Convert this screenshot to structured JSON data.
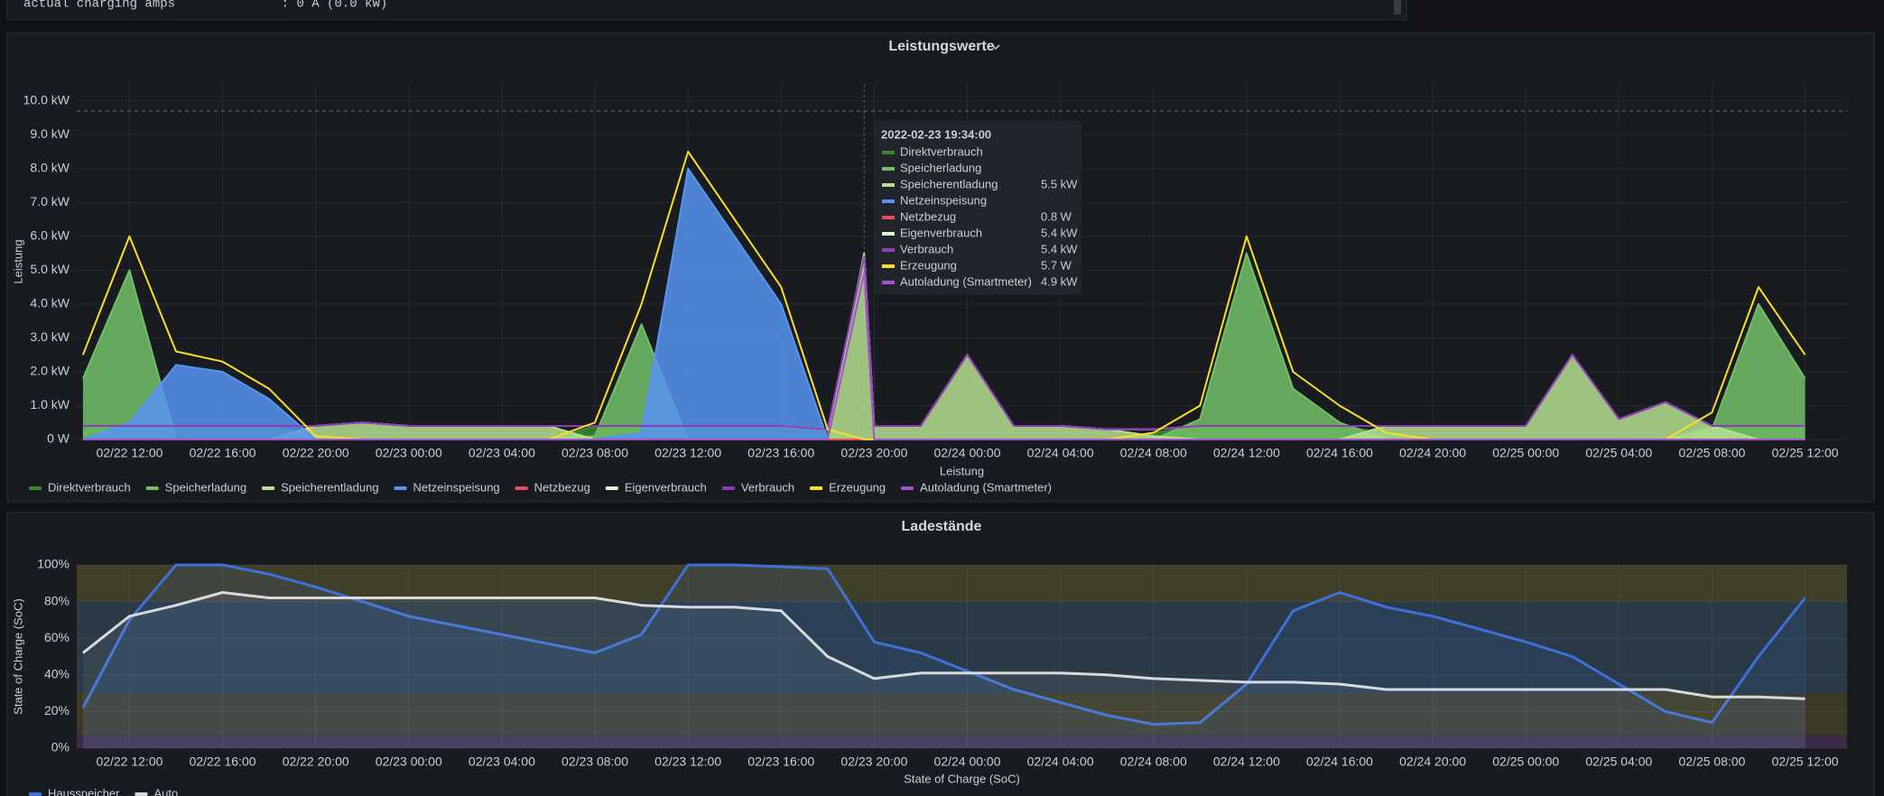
{
  "header": {
    "text": "actual charging amps              : 0 A (0.0 kW)"
  },
  "chart_data": [
    {
      "type": "area",
      "title": "Leistungswerte",
      "ylabel": "Leistung",
      "xlabel": "Leistung",
      "xlim": [
        "02/22 09:44",
        "02/25 13:48"
      ],
      "xticks": [
        "02/22 12:00",
        "02/22 16:00",
        "02/22 20:00",
        "02/23 00:00",
        "02/23 04:00",
        "02/23 08:00",
        "02/23 12:00",
        "02/23 16:00",
        "02/23 20:00",
        "02/24 00:00",
        "02/24 04:00",
        "02/24 08:00",
        "02/24 12:00",
        "02/24 16:00",
        "02/24 20:00",
        "02/25 00:00",
        "02/25 04:00",
        "02/25 08:00",
        "02/25 12:00"
      ],
      "ylim": [
        0,
        10.5
      ],
      "yticks": [
        {
          "value": 0,
          "label": "0 W"
        },
        {
          "value": 1,
          "label": "1.0 kW"
        },
        {
          "value": 2,
          "label": "2.0 kW"
        },
        {
          "value": 3,
          "label": "3.0 kW"
        },
        {
          "value": 4,
          "label": "4.0 kW"
        },
        {
          "value": 5,
          "label": "5.0 kW"
        },
        {
          "value": 6,
          "label": "6.0 kW"
        },
        {
          "value": 7,
          "label": "7.0 kW"
        },
        {
          "value": 8,
          "label": "8.0 kW"
        },
        {
          "value": 9,
          "label": "9.0 kW"
        },
        {
          "value": 10,
          "label": "10.0 kW"
        }
      ],
      "grid": true,
      "threshold": 9.7,
      "x": [
        "02/22 10:00",
        "02/22 12:00",
        "02/22 14:00",
        "02/22 16:00",
        "02/22 18:00",
        "02/22 20:00",
        "02/22 22:00",
        "02/23 00:00",
        "02/23 02:00",
        "02/23 04:00",
        "02/23 06:00",
        "02/23 08:00",
        "02/23 10:00",
        "02/23 12:00",
        "02/23 14:00",
        "02/23 16:00",
        "02/23 18:00",
        "02/23 19:34",
        "02/23 20:00",
        "02/23 22:00",
        "02/24 00:00",
        "02/24 02:00",
        "02/24 04:00",
        "02/24 06:00",
        "02/24 08:00",
        "02/24 10:00",
        "02/24 12:00",
        "02/24 14:00",
        "02/24 16:00",
        "02/24 18:00",
        "02/24 20:00",
        "02/24 22:00",
        "02/25 00:00",
        "02/25 02:00",
        "02/25 04:00",
        "02/25 06:00",
        "02/25 08:00",
        "02/25 10:00",
        "02/25 12:00"
      ],
      "series": [
        {
          "name": "Direktverbrauch",
          "color": "#37872d",
          "fill_opacity": 0.9,
          "values": [
            0.4,
            0.4,
            0.4,
            0.4,
            0.4,
            0.1,
            0,
            0,
            0,
            0,
            0,
            0.4,
            0.4,
            0.4,
            0.4,
            0.4,
            0.3,
            0,
            0,
            0,
            0,
            0,
            0,
            0,
            0.2,
            0.4,
            0.4,
            0.4,
            0.4,
            0.2,
            0,
            0,
            0,
            0,
            0,
            0,
            0.4,
            0.4,
            0.4
          ]
        },
        {
          "name": "Speicherladung",
          "color": "#73bf69",
          "fill_opacity": 0.85,
          "values": [
            1.8,
            5.0,
            0,
            0,
            0,
            0,
            0,
            0,
            0,
            0,
            0,
            0.1,
            3.4,
            0,
            0,
            0,
            0,
            0,
            0,
            0,
            0,
            0,
            0,
            0,
            0,
            0.6,
            5.5,
            1.5,
            0.5,
            0,
            0,
            0,
            0,
            0,
            0,
            0,
            0.3,
            4.0,
            1.8
          ]
        },
        {
          "name": "Speicherentladung",
          "color": "#b5e08f",
          "fill_opacity": 0.85,
          "values": [
            0,
            0,
            0,
            0,
            0,
            0.4,
            0.5,
            0.4,
            0.4,
            0.4,
            0.4,
            0,
            0,
            0,
            0,
            0,
            0,
            5.5,
            0.4,
            0.4,
            2.5,
            0.4,
            0.4,
            0.3,
            0.1,
            0,
            0,
            0,
            0,
            0.4,
            0.4,
            0.4,
            0.4,
            2.5,
            0.6,
            1.1,
            0.4,
            0,
            0
          ]
        },
        {
          "name": "Netzeinspeisung",
          "color": "#5794f2",
          "fill_opacity": 0.85,
          "values": [
            0,
            0.5,
            2.2,
            2.0,
            1.2,
            0,
            0,
            0,
            0,
            0,
            0,
            0,
            0.2,
            8.0,
            6.0,
            4.0,
            0,
            0,
            0,
            0,
            0,
            0,
            0,
            0,
            0,
            0,
            0,
            0,
            0,
            0,
            0,
            0,
            0,
            0,
            0,
            0,
            0,
            0,
            0
          ]
        },
        {
          "name": "Netzbezug",
          "color": "#f2495c",
          "fill_opacity": 0,
          "values": [
            0,
            0,
            0,
            0,
            0,
            0,
            0,
            0,
            0,
            0,
            0,
            0,
            0,
            0,
            0,
            0,
            0,
            0.0008,
            0,
            0,
            0,
            0,
            0,
            0,
            0,
            0,
            0,
            0,
            0,
            0,
            0,
            0,
            0,
            0,
            0,
            0,
            0,
            0,
            0
          ]
        },
        {
          "name": "Eigenverbrauch",
          "color": "#e0f9d7",
          "fill_opacity": 0,
          "values": [
            0.4,
            0.4,
            0.4,
            0.4,
            0.4,
            0.4,
            0.5,
            0.4,
            0.4,
            0.4,
            0.4,
            0.4,
            0.4,
            0.4,
            0.4,
            0.4,
            0.3,
            5.4,
            0.4,
            0.4,
            2.5,
            0.4,
            0.4,
            0.3,
            0.3,
            0.4,
            0.4,
            0.4,
            0.4,
            0.4,
            0.4,
            0.4,
            0.4,
            2.5,
            0.6,
            1.1,
            0.4,
            0.4,
            0.4
          ]
        },
        {
          "name": "Verbrauch",
          "color": "#8f3bb8",
          "fill_opacity": 0,
          "values": [
            0.4,
            0.4,
            0.4,
            0.4,
            0.4,
            0.4,
            0.5,
            0.4,
            0.4,
            0.4,
            0.4,
            0.4,
            0.4,
            0.4,
            0.4,
            0.4,
            0.3,
            5.4,
            0.4,
            0.4,
            2.5,
            0.4,
            0.4,
            0.3,
            0.3,
            0.4,
            0.4,
            0.4,
            0.4,
            0.4,
            0.4,
            0.4,
            0.4,
            2.5,
            0.6,
            1.1,
            0.4,
            0.4,
            0.4
          ]
        },
        {
          "name": "Erzeugung",
          "color": "#fade2a",
          "fill_opacity": 0,
          "values": [
            2.5,
            6.0,
            2.6,
            2.3,
            1.5,
            0.1,
            0,
            0,
            0,
            0,
            0,
            0.5,
            4.0,
            8.5,
            6.5,
            4.5,
            0.3,
            0.0057,
            0,
            0,
            0,
            0,
            0,
            0,
            0.2,
            1.0,
            6.0,
            2.0,
            1.0,
            0.2,
            0,
            0,
            0,
            0,
            0,
            0,
            0.8,
            4.5,
            2.5
          ]
        },
        {
          "name": "Autoladung (Smartmeter)",
          "color": "#a352cc",
          "fill_opacity": 0,
          "values": [
            0,
            0,
            0,
            0,
            0,
            0,
            0,
            0,
            0,
            0,
            0,
            0,
            0,
            0,
            0,
            0,
            0,
            4.9,
            0,
            0,
            0,
            0,
            0,
            0,
            0,
            0,
            0,
            0,
            0,
            0,
            0,
            0,
            0,
            0,
            0,
            0,
            0,
            0,
            0
          ]
        }
      ],
      "tooltip": {
        "time": "2022-02-23 19:34:00",
        "labels": [
          null,
          null,
          "5.5 kW",
          null,
          "0.8 W",
          "5.4 kW",
          "5.4 kW",
          "5.7 W",
          "4.9 kW"
        ]
      }
    },
    {
      "type": "line",
      "title": "Ladestände",
      "ylabel": "State of Charge (SoC)",
      "xlabel": "State of Charge (SoC)",
      "xlim": [
        "02/22 09:44",
        "02/25 13:48"
      ],
      "xticks": [
        "02/22 12:00",
        "02/22 16:00",
        "02/22 20:00",
        "02/23 00:00",
        "02/23 04:00",
        "02/23 08:00",
        "02/23 12:00",
        "02/23 16:00",
        "02/23 20:00",
        "02/24 00:00",
        "02/24 04:00",
        "02/24 08:00",
        "02/24 12:00",
        "02/24 16:00",
        "02/24 20:00",
        "02/25 00:00",
        "02/25 04:00",
        "02/25 08:00",
        "02/25 12:00"
      ],
      "ylim": [
        0,
        100
      ],
      "yticks": [
        {
          "value": 0,
          "label": "0%"
        },
        {
          "value": 20,
          "label": "20%"
        },
        {
          "value": 40,
          "label": "40%"
        },
        {
          "value": 60,
          "label": "60%"
        },
        {
          "value": 80,
          "label": "80%"
        },
        {
          "value": 100,
          "label": "100%"
        }
      ],
      "grid": true,
      "bands": [
        {
          "from": 0,
          "to": 7,
          "color": "#3b2b48"
        },
        {
          "from": 7,
          "to": 30,
          "color": "#3a3a26"
        },
        {
          "from": 30,
          "to": 80,
          "color": "#2a3946"
        },
        {
          "from": 80,
          "to": 100,
          "color": "#413f28"
        }
      ],
      "x": [
        "02/22 10:00",
        "02/22 12:00",
        "02/22 14:00",
        "02/22 16:00",
        "02/22 18:00",
        "02/22 20:00",
        "02/22 22:00",
        "02/23 00:00",
        "02/23 02:00",
        "02/23 04:00",
        "02/23 06:00",
        "02/23 08:00",
        "02/23 10:00",
        "02/23 12:00",
        "02/23 14:00",
        "02/23 16:00",
        "02/23 18:00",
        "02/23 20:00",
        "02/23 22:00",
        "02/24 00:00",
        "02/24 02:00",
        "02/24 04:00",
        "02/24 06:00",
        "02/24 08:00",
        "02/24 10:00",
        "02/24 12:00",
        "02/24 14:00",
        "02/24 16:00",
        "02/24 18:00",
        "02/24 20:00",
        "02/24 22:00",
        "02/25 00:00",
        "02/25 02:00",
        "02/25 04:00",
        "02/25 06:00",
        "02/25 08:00",
        "02/25 10:00",
        "02/25 12:00"
      ],
      "series": [
        {
          "name": "Hausspeicher",
          "color": "#3d71d9",
          "fill_opacity": 0.12,
          "values": [
            22,
            70,
            100,
            100,
            95,
            88,
            80,
            72,
            67,
            62,
            57,
            52,
            62,
            100,
            100,
            99,
            98,
            58,
            52,
            42,
            32,
            25,
            18,
            13,
            14,
            35,
            75,
            85,
            77,
            72,
            65,
            58,
            50,
            35,
            20,
            14,
            50,
            82
          ]
        },
        {
          "name": "Auto",
          "color": "#d8d9da",
          "fill_opacity": 0.08,
          "values": [
            52,
            72,
            78,
            85,
            82,
            82,
            82,
            82,
            82,
            82,
            82,
            82,
            78,
            77,
            77,
            75,
            50,
            38,
            41,
            41,
            41,
            41,
            40,
            38,
            37,
            36,
            36,
            35,
            32,
            32,
            32,
            32,
            32,
            32,
            32,
            28,
            28,
            27
          ]
        }
      ]
    }
  ]
}
